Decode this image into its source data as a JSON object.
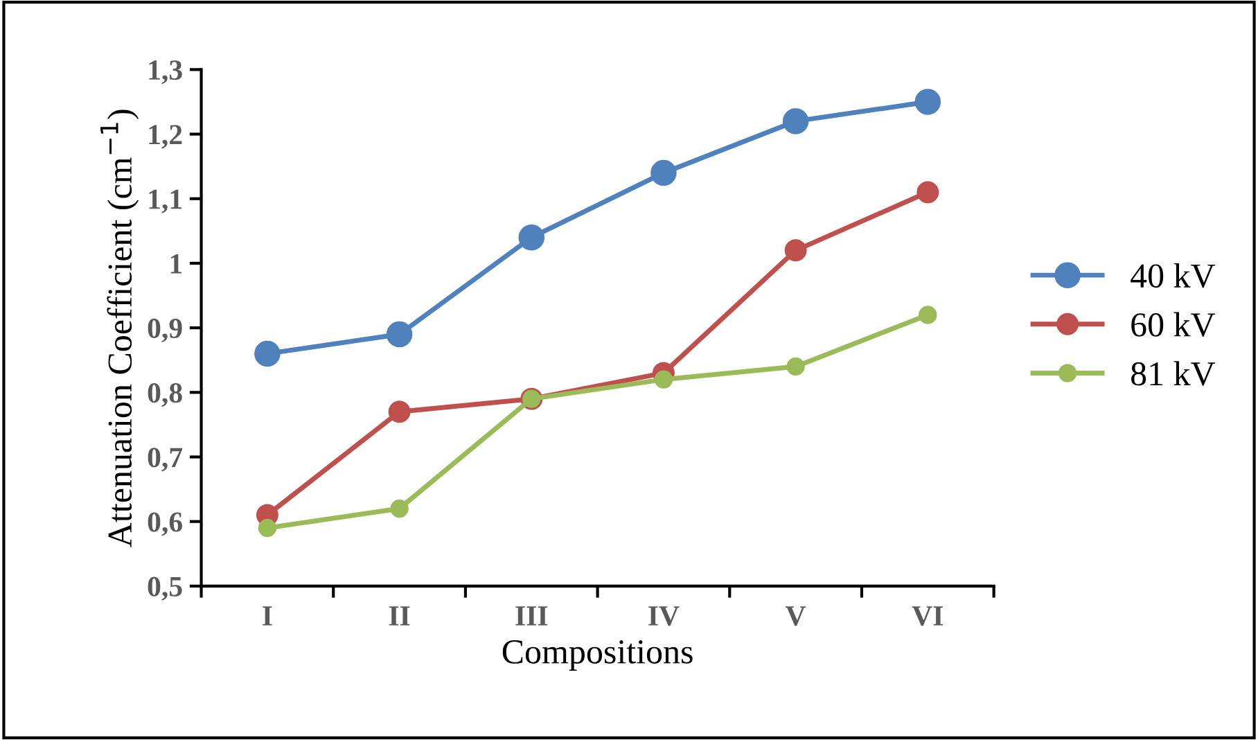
{
  "chart_data": {
    "type": "line",
    "xlabel": "Compositions",
    "ylabel": "Attenuation Coefficient (cm$^{−1}$)",
    "categories": [
      "I",
      "II",
      "III",
      "IV",
      "V",
      "VI"
    ],
    "series": [
      {
        "name": "40 kV",
        "color": "#4f81bd",
        "values": [
          0.86,
          0.89,
          1.04,
          1.14,
          1.22,
          1.25
        ]
      },
      {
        "name": "60 kV",
        "color": "#c0504d",
        "values": [
          0.61,
          0.77,
          0.79,
          0.83,
          1.02,
          1.11
        ]
      },
      {
        "name": "81 kV",
        "color": "#9bbb59",
        "values": [
          0.59,
          0.62,
          0.79,
          0.82,
          0.84,
          0.92
        ]
      }
    ],
    "ylim": [
      0.5,
      1.3
    ],
    "yticks": [
      {
        "value": 0.5,
        "label": "0,5"
      },
      {
        "value": 0.6,
        "label": "0,6"
      },
      {
        "value": 0.7,
        "label": "0,7"
      },
      {
        "value": 0.8,
        "label": "0,8"
      },
      {
        "value": 0.9,
        "label": "0,9"
      },
      {
        "value": 1,
        "label": "1"
      },
      {
        "value": 1.1,
        "label": "1,1"
      },
      {
        "value": 1.2,
        "label": "1,2"
      },
      {
        "value": 1.3,
        "label": "1,3"
      }
    ],
    "grid": false,
    "legend": "right",
    "marker": "circle",
    "line_style": "solid"
  }
}
